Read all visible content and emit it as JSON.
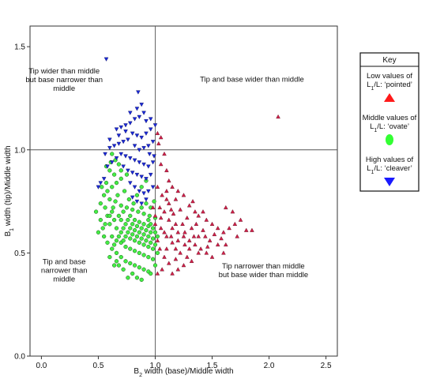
{
  "chart_data": {
    "type": "scatter",
    "title": "",
    "xlabel": {
      "main": "B",
      "sub": "2",
      "rest": " width (base)/Middle width"
    },
    "ylabel": {
      "main": "B",
      "sub": "1",
      "rest": " width (tip)/Middle width"
    },
    "xlim": [
      -0.1,
      2.6
    ],
    "ylim": [
      0.0,
      1.6
    ],
    "x_ticks": [
      "0.0",
      "0.5",
      "1.0",
      "1.5",
      "2.0",
      "2.5"
    ],
    "x_tick_values": [
      0.0,
      0.5,
      1.0,
      1.5,
      2.0,
      2.5
    ],
    "y_ticks": [
      "0.0",
      "0.5",
      "1.0",
      "1.5"
    ],
    "y_tick_values": [
      0.0,
      0.5,
      1.0,
      1.5
    ],
    "reference_lines": {
      "x": 1.0,
      "y": 1.0
    },
    "grid": false,
    "annotations": [
      {
        "lines": [
          "Tip wider than middle",
          "but base narrower than",
          "middle"
        ],
        "x": 0.2,
        "y": 1.37
      },
      {
        "lines": [
          "Tip and base wider than middle"
        ],
        "x": 1.85,
        "y": 1.33
      },
      {
        "lines": [
          "Tip and base",
          "narrower than",
          "middle"
        ],
        "x": 0.2,
        "y": 0.445
      },
      {
        "lines": [
          "Tip narrower than middle",
          "but base wider than middle"
        ],
        "x": 1.95,
        "y": 0.425
      }
    ],
    "legend": {
      "placement": "right",
      "title": "Key",
      "entries": [
        {
          "line1": "Low values of",
          "line2_main": "L",
          "line2_sub": "1",
          "line2_rest": "/L: ‘pointed’",
          "marker": "triangle-up",
          "color": "#ff1a1a"
        },
        {
          "line1": "Middle values of",
          "line2_main": "L",
          "line2_sub": "1",
          "line2_rest": "/L: ‘ovate’",
          "marker": "ellipse",
          "color": "#33ff33"
        },
        {
          "line1": "High values of",
          "line2_main": "L",
          "line2_sub": "1",
          "line2_rest": "/L: ‘cleaver’",
          "marker": "triangle-down",
          "color": "#1a1aff"
        }
      ]
    },
    "series": [
      {
        "name": "Low values of L1/L: 'pointed'",
        "marker": "triangle-up",
        "color": "#d0204a",
        "points": [
          [
            2.08,
            1.16
          ],
          [
            1.02,
            1.08
          ],
          [
            1.05,
            1.06
          ],
          [
            1.03,
            1.03
          ],
          [
            1.08,
            0.98
          ],
          [
            1.05,
            0.93
          ],
          [
            1.1,
            0.9
          ],
          [
            1.12,
            0.85
          ],
          [
            1.15,
            0.82
          ],
          [
            1.2,
            0.8
          ],
          [
            1.25,
            0.78
          ],
          [
            1.18,
            0.76
          ],
          [
            1.3,
            0.73
          ],
          [
            1.35,
            0.7
          ],
          [
            1.38,
            0.68
          ],
          [
            1.45,
            0.66
          ],
          [
            1.5,
            0.64
          ],
          [
            1.55,
            0.62
          ],
          [
            1.6,
            0.6
          ],
          [
            1.65,
            0.62
          ],
          [
            1.7,
            0.64
          ],
          [
            1.75,
            0.66
          ],
          [
            1.8,
            0.61
          ],
          [
            1.85,
            0.61
          ],
          [
            1.62,
            0.72
          ],
          [
            1.68,
            0.7
          ],
          [
            1.33,
            0.75
          ],
          [
            1.42,
            0.7
          ],
          [
            1.28,
            0.67
          ],
          [
            1.22,
            0.71
          ],
          [
            1.12,
            0.74
          ],
          [
            1.06,
            0.78
          ],
          [
            1.02,
            0.82
          ],
          [
            1.08,
            0.7
          ],
          [
            1.12,
            0.66
          ],
          [
            1.15,
            0.62
          ],
          [
            1.2,
            0.6
          ],
          [
            1.25,
            0.58
          ],
          [
            1.3,
            0.56
          ],
          [
            1.35,
            0.54
          ],
          [
            1.4,
            0.52
          ],
          [
            1.45,
            0.5
          ],
          [
            1.5,
            0.48
          ],
          [
            1.38,
            0.58
          ],
          [
            1.32,
            0.62
          ],
          [
            1.48,
            0.56
          ],
          [
            1.55,
            0.54
          ],
          [
            1.6,
            0.5
          ],
          [
            1.05,
            0.62
          ],
          [
            1.1,
            0.58
          ],
          [
            1.15,
            0.55
          ],
          [
            1.18,
            0.52
          ],
          [
            1.22,
            0.5
          ],
          [
            1.28,
            0.48
          ],
          [
            1.32,
            0.46
          ],
          [
            1.25,
            0.44
          ],
          [
            1.2,
            0.42
          ],
          [
            1.12,
            0.45
          ],
          [
            1.08,
            0.48
          ],
          [
            1.04,
            0.52
          ],
          [
            1.02,
            0.56
          ],
          [
            1.06,
            0.42
          ],
          [
            1.02,
            0.4
          ],
          [
            1.15,
            0.4
          ],
          [
            1.18,
            0.47
          ],
          [
            1.1,
            0.52
          ],
          [
            1.05,
            0.67
          ],
          [
            1.16,
            0.69
          ],
          [
            1.24,
            0.64
          ],
          [
            1.36,
            0.64
          ],
          [
            1.42,
            0.61
          ],
          [
            1.52,
            0.59
          ],
          [
            1.58,
            0.57
          ],
          [
            1.46,
            0.53
          ],
          [
            1.38,
            0.5
          ],
          [
            1.3,
            0.52
          ],
          [
            1.26,
            0.54
          ],
          [
            1.2,
            0.56
          ],
          [
            1.14,
            0.58
          ],
          [
            1.08,
            0.6
          ],
          [
            1.0,
            0.64
          ],
          [
            0.98,
            0.72
          ],
          [
            1.0,
            0.68
          ],
          [
            1.04,
            0.72
          ],
          [
            1.1,
            0.76
          ],
          [
            1.18,
            0.64
          ],
          [
            1.26,
            0.6
          ],
          [
            1.34,
            0.58
          ],
          [
            1.1,
            0.8
          ],
          [
            1.14,
            0.71
          ],
          [
            1.44,
            0.58
          ],
          [
            1.62,
            0.54
          ],
          [
            1.72,
            0.58
          ]
        ]
      },
      {
        "name": "Middle values of L1/L: 'ovate'",
        "marker": "ellipse",
        "color": "#44ee44",
        "points": [
          [
            0.62,
            0.98
          ],
          [
            0.65,
            0.95
          ],
          [
            0.68,
            0.93
          ],
          [
            0.6,
            0.9
          ],
          [
            0.64,
            0.88
          ],
          [
            0.7,
            0.86
          ],
          [
            0.66,
            0.84
          ],
          [
            0.62,
            0.82
          ],
          [
            0.58,
            0.8
          ],
          [
            0.55,
            0.78
          ],
          [
            0.6,
            0.76
          ],
          [
            0.65,
            0.75
          ],
          [
            0.7,
            0.73
          ],
          [
            0.75,
            0.72
          ],
          [
            0.8,
            0.71
          ],
          [
            0.85,
            0.7
          ],
          [
            0.9,
            0.69
          ],
          [
            0.95,
            0.68
          ],
          [
            1.0,
            0.67
          ],
          [
            0.72,
            0.7
          ],
          [
            0.78,
            0.68
          ],
          [
            0.82,
            0.66
          ],
          [
            0.86,
            0.65
          ],
          [
            0.9,
            0.64
          ],
          [
            0.94,
            0.63
          ],
          [
            0.98,
            0.62
          ],
          [
            0.7,
            0.66
          ],
          [
            0.74,
            0.64
          ],
          [
            0.78,
            0.62
          ],
          [
            0.82,
            0.61
          ],
          [
            0.86,
            0.6
          ],
          [
            0.9,
            0.59
          ],
          [
            0.94,
            0.58
          ],
          [
            0.98,
            0.57
          ],
          [
            1.02,
            0.58
          ],
          [
            0.66,
            0.62
          ],
          [
            0.7,
            0.6
          ],
          [
            0.74,
            0.58
          ],
          [
            0.78,
            0.57
          ],
          [
            0.82,
            0.56
          ],
          [
            0.86,
            0.55
          ],
          [
            0.9,
            0.54
          ],
          [
            0.94,
            0.53
          ],
          [
            0.98,
            0.52
          ],
          [
            0.62,
            0.58
          ],
          [
            0.66,
            0.56
          ],
          [
            0.7,
            0.55
          ],
          [
            0.74,
            0.53
          ],
          [
            0.78,
            0.52
          ],
          [
            0.82,
            0.51
          ],
          [
            0.86,
            0.5
          ],
          [
            0.9,
            0.49
          ],
          [
            0.94,
            0.48
          ],
          [
            0.98,
            0.47
          ],
          [
            0.6,
            0.64
          ],
          [
            0.58,
            0.68
          ],
          [
            0.56,
            0.72
          ],
          [
            0.54,
            0.62
          ],
          [
            0.52,
            0.66
          ],
          [
            0.5,
            0.6
          ],
          [
            0.55,
            0.58
          ],
          [
            0.58,
            0.55
          ],
          [
            0.62,
            0.52
          ],
          [
            0.66,
            0.5
          ],
          [
            0.7,
            0.48
          ],
          [
            0.74,
            0.46
          ],
          [
            0.78,
            0.45
          ],
          [
            0.82,
            0.44
          ],
          [
            0.86,
            0.43
          ],
          [
            0.9,
            0.42
          ],
          [
            0.94,
            0.41
          ],
          [
            0.8,
            0.4
          ],
          [
            0.84,
            0.38
          ],
          [
            0.72,
            0.42
          ],
          [
            0.68,
            0.44
          ],
          [
            0.76,
            0.38
          ],
          [
            0.88,
            0.37
          ],
          [
            0.96,
            0.4
          ],
          [
            1.0,
            0.44
          ],
          [
            1.02,
            0.5
          ],
          [
            0.48,
            0.7
          ],
          [
            0.52,
            0.74
          ],
          [
            0.57,
            0.84
          ],
          [
            0.63,
            0.72
          ],
          [
            0.67,
            0.78
          ],
          [
            0.73,
            0.8
          ],
          [
            0.77,
            0.76
          ],
          [
            0.81,
            0.74
          ],
          [
            0.88,
            0.72
          ],
          [
            0.92,
            0.74
          ],
          [
            0.96,
            0.72
          ],
          [
            0.99,
            0.75
          ],
          [
            0.84,
            0.78
          ],
          [
            0.88,
            0.82
          ],
          [
            0.92,
            0.85
          ],
          [
            0.7,
            0.9
          ],
          [
            0.75,
            0.88
          ],
          [
            0.53,
            0.82
          ],
          [
            0.57,
            0.92
          ],
          [
            0.61,
            0.94
          ],
          [
            0.64,
            0.66
          ],
          [
            0.68,
            0.68
          ],
          [
            0.76,
            0.66
          ],
          [
            0.8,
            0.64
          ],
          [
            0.84,
            0.63
          ],
          [
            0.88,
            0.62
          ],
          [
            0.92,
            0.61
          ],
          [
            0.96,
            0.6
          ],
          [
            1.0,
            0.6
          ],
          [
            0.72,
            0.62
          ],
          [
            0.76,
            0.6
          ],
          [
            0.8,
            0.59
          ],
          [
            0.84,
            0.58
          ],
          [
            0.88,
            0.57
          ],
          [
            0.92,
            0.56
          ],
          [
            0.96,
            0.55
          ],
          [
            1.0,
            0.54
          ],
          [
            0.68,
            0.58
          ],
          [
            0.72,
            0.56
          ],
          [
            0.64,
            0.54
          ],
          [
            0.56,
            0.64
          ],
          [
            0.6,
            0.68
          ],
          [
            0.62,
            0.7
          ],
          [
            0.94,
            0.66
          ],
          [
            0.96,
            0.64
          ],
          [
            0.66,
            0.46
          ],
          [
            0.6,
            0.48
          ],
          [
            0.64,
            0.44
          ]
        ]
      },
      {
        "name": "High values of L1/L: 'cleaver'",
        "marker": "triangle-down",
        "color": "#1a2ad8",
        "points": [
          [
            0.57,
            1.44
          ],
          [
            0.85,
            1.28
          ],
          [
            0.88,
            1.22
          ],
          [
            0.9,
            1.18
          ],
          [
            0.86,
            1.16
          ],
          [
            0.82,
            1.15
          ],
          [
            0.78,
            1.13
          ],
          [
            0.74,
            1.12
          ],
          [
            0.7,
            1.11
          ],
          [
            0.66,
            1.1
          ],
          [
            0.8,
            1.08
          ],
          [
            0.84,
            1.07
          ],
          [
            0.88,
            1.06
          ],
          [
            0.92,
            1.08
          ],
          [
            0.96,
            1.1
          ],
          [
            1.0,
            1.12
          ],
          [
            0.76,
            1.05
          ],
          [
            0.72,
            1.04
          ],
          [
            0.68,
            1.03
          ],
          [
            0.64,
            1.02
          ],
          [
            0.6,
            1.01
          ],
          [
            0.82,
            1.02
          ],
          [
            0.86,
            1.0
          ],
          [
            0.9,
            1.01
          ],
          [
            0.94,
            1.02
          ],
          [
            0.98,
            1.04
          ],
          [
            0.7,
            0.98
          ],
          [
            0.74,
            0.97
          ],
          [
            0.78,
            0.96
          ],
          [
            0.82,
            0.95
          ],
          [
            0.86,
            0.94
          ],
          [
            0.9,
            0.93
          ],
          [
            0.94,
            0.92
          ],
          [
            0.98,
            0.94
          ],
          [
            0.66,
            0.96
          ],
          [
            0.62,
            0.94
          ],
          [
            0.58,
            0.92
          ],
          [
            0.72,
            0.92
          ],
          [
            0.76,
            0.9
          ],
          [
            0.8,
            0.89
          ],
          [
            0.84,
            0.88
          ],
          [
            0.88,
            0.87
          ],
          [
            0.92,
            0.86
          ],
          [
            0.96,
            0.88
          ],
          [
            0.78,
            0.84
          ],
          [
            0.82,
            0.82
          ],
          [
            0.86,
            0.8
          ],
          [
            0.9,
            0.79
          ],
          [
            0.94,
            0.8
          ],
          [
            0.98,
            0.82
          ],
          [
            0.8,
            0.77
          ],
          [
            0.84,
            0.75
          ],
          [
            0.88,
            0.74
          ],
          [
            0.92,
            0.76
          ],
          [
            0.55,
            0.86
          ],
          [
            0.52,
            0.84
          ],
          [
            0.5,
            0.82
          ],
          [
            0.95,
            0.98
          ],
          [
            0.99,
            0.97
          ],
          [
            0.68,
            1.07
          ],
          [
            0.74,
            1.09
          ],
          [
            0.78,
            1.18
          ],
          [
            0.84,
            1.2
          ],
          [
            0.92,
            1.14
          ],
          [
            0.96,
            1.15
          ],
          [
            0.56,
            0.98
          ],
          [
            0.6,
            1.05
          ]
        ]
      }
    ]
  }
}
